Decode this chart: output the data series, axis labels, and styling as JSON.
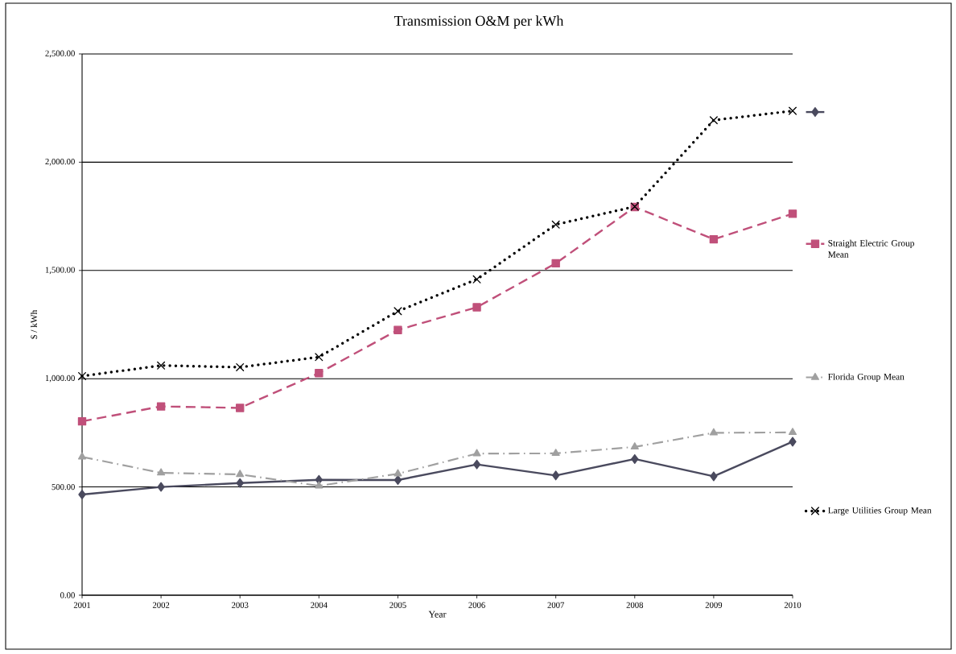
{
  "chart_data": {
    "type": "line",
    "title": "Transmission O&M per kWh",
    "xlabel": "Year",
    "ylabel": "$ / kWh",
    "categories": [
      "2001",
      "2002",
      "2003",
      "2004",
      "2005",
      "2006",
      "2007",
      "2008",
      "2009",
      "2010"
    ],
    "ylim": [
      0,
      2500
    ],
    "yticks": [
      {
        "value": 0,
        "label": "0.00"
      },
      {
        "value": 500,
        "label": "500.00"
      },
      {
        "value": 1000,
        "label": "1,000.00"
      },
      {
        "value": 1500,
        "label": "1,500.00"
      },
      {
        "value": 2000,
        "label": "2,000.00"
      },
      {
        "value": 2500,
        "label": "2,500.00"
      }
    ],
    "grid": "y",
    "legend": "right",
    "series": [
      {
        "color": "#4a4a5e",
        "marker": "diamond",
        "line_style": "solid",
        "values": [
          465,
          500,
          518,
          533,
          532,
          604,
          553,
          629,
          549,
          709
        ]
      },
      {
        "name": "Straight Electric Group Mean",
        "color": "#c0507a",
        "marker": "square",
        "line_style": "dashed",
        "values": [
          803,
          872,
          865,
          1026,
          1225,
          1330,
          1533,
          1793,
          1644,
          1762
        ]
      },
      {
        "name": "Florida Group Mean",
        "color": "#a0a0a0",
        "marker": "triangle",
        "line_style": "dashdot",
        "values": [
          639,
          565,
          558,
          505,
          561,
          654,
          655,
          685,
          750,
          752
        ]
      },
      {
        "name": "Large Utilities Group Mean",
        "color": "#000000",
        "marker": "cross",
        "line_style": "dotted",
        "values": [
          1012,
          1061,
          1053,
          1100,
          1312,
          1459,
          1712,
          1795,
          2194,
          2237
        ]
      }
    ]
  }
}
